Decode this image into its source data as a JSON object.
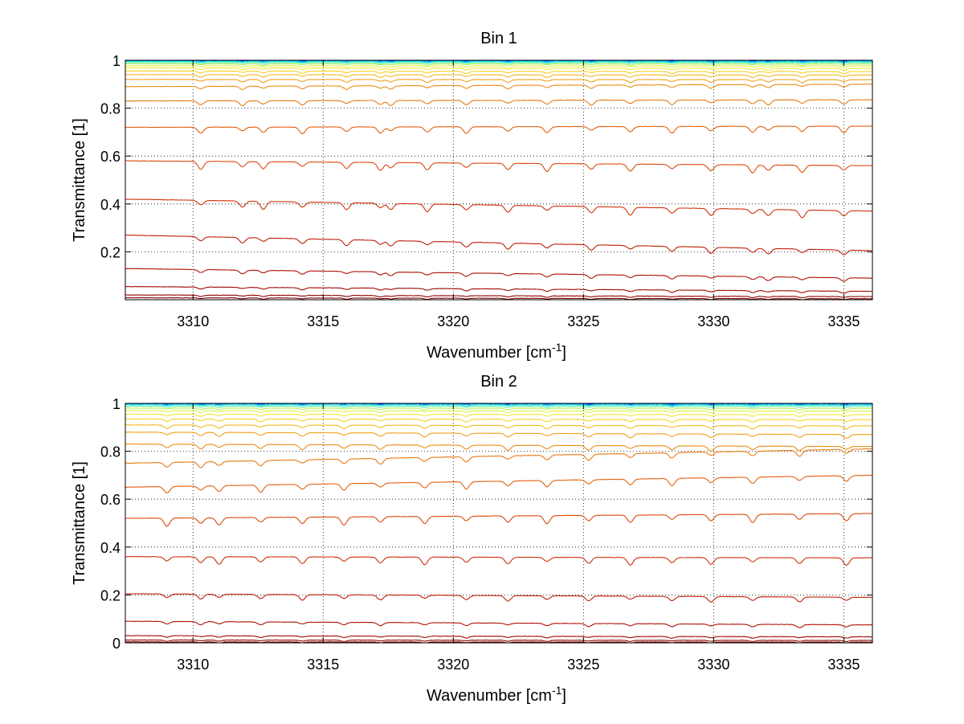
{
  "chart_data": [
    {
      "type": "line",
      "title": "Bin 1",
      "xlabel": "Wavenumber [cm",
      "xlabel_sup": "-1",
      "xlabel_suffix": "]",
      "ylabel": "Transmittance [1]",
      "xlim": [
        3307.4,
        3336.1
      ],
      "ylim": [
        0,
        1
      ],
      "xticks": [
        3310,
        3315,
        3320,
        3325,
        3330,
        3335
      ],
      "xtick_labels": [
        "3310",
        "3315",
        "3320",
        "3325",
        "3330",
        "3335"
      ],
      "yticks": [
        0.2,
        0.4,
        0.6,
        0.8,
        1
      ],
      "ytick_labels": [
        "0.2",
        "0.4",
        "0.6",
        "0.8",
        "1"
      ],
      "grid": "dotted",
      "absorption_lines_cm-1": [
        3310.3,
        3311.9,
        3312.7,
        3314.2,
        3315.9,
        3317.2,
        3317.6,
        3319.0,
        3320.5,
        3322.1,
        3323.6,
        3325.3,
        3326.8,
        3328.4,
        3329.9,
        3331.5,
        3332.1,
        3333.4,
        3335.0
      ],
      "series": [
        {
          "name": "trace-1",
          "color": "#0000c8",
          "start": 1.0,
          "end": 1.0
        },
        {
          "name": "trace-2",
          "color": "#0050ff",
          "start": 1.0,
          "end": 0.999
        },
        {
          "name": "trace-3",
          "color": "#00a0ff",
          "start": 0.998,
          "end": 0.997
        },
        {
          "name": "trace-4",
          "color": "#10dfe0",
          "start": 0.995,
          "end": 0.994
        },
        {
          "name": "trace-5",
          "color": "#60f0a0",
          "start": 0.99,
          "end": 0.99
        },
        {
          "name": "trace-6",
          "color": "#b0f060",
          "start": 0.985,
          "end": 0.984
        },
        {
          "name": "trace-7",
          "color": "#e0f040",
          "start": 0.977,
          "end": 0.976
        },
        {
          "name": "trace-8",
          "color": "#f5e830",
          "start": 0.968,
          "end": 0.966
        },
        {
          "name": "trace-9",
          "color": "#f8d020",
          "start": 0.955,
          "end": 0.953
        },
        {
          "name": "trace-10",
          "color": "#f5b820",
          "start": 0.94,
          "end": 0.938
        },
        {
          "name": "trace-11",
          "color": "#f0a018",
          "start": 0.92,
          "end": 0.919
        },
        {
          "name": "trace-12",
          "color": "#ec8c14",
          "start": 0.89,
          "end": 0.9
        },
        {
          "name": "trace-13",
          "color": "#e87810",
          "start": 0.83,
          "end": 0.835
        },
        {
          "name": "trace-14",
          "color": "#e4600e",
          "start": 0.72,
          "end": 0.725
        },
        {
          "name": "trace-15",
          "color": "#dc480c",
          "start": 0.58,
          "end": 0.56
        },
        {
          "name": "trace-16",
          "color": "#d0300a",
          "start": 0.42,
          "end": 0.37
        },
        {
          "name": "trace-17",
          "color": "#c01e08",
          "start": 0.27,
          "end": 0.205
        },
        {
          "name": "trace-18",
          "color": "#b01006",
          "start": 0.13,
          "end": 0.09
        },
        {
          "name": "trace-19",
          "color": "#a00804",
          "start": 0.055,
          "end": 0.035
        },
        {
          "name": "trace-20",
          "color": "#900404",
          "start": 0.02,
          "end": 0.013
        },
        {
          "name": "trace-21",
          "color": "#800000",
          "start": 0.008,
          "end": 0.004
        }
      ]
    },
    {
      "type": "line",
      "title": "Bin 2",
      "xlabel": "Wavenumber [cm",
      "xlabel_sup": "-1",
      "xlabel_suffix": "]",
      "ylabel": "Transmittance [1]",
      "xlim": [
        3307.4,
        3336.1
      ],
      "ylim": [
        0,
        1
      ],
      "xticks": [
        3310,
        3315,
        3320,
        3325,
        3330,
        3335
      ],
      "xtick_labels": [
        "3310",
        "3315",
        "3320",
        "3325",
        "3330",
        "3335"
      ],
      "yticks": [
        0,
        0.2,
        0.4,
        0.6,
        0.8,
        1
      ],
      "ytick_labels": [
        "0",
        "0.2",
        "0.4",
        "0.6",
        "0.8",
        "1"
      ],
      "grid": "dotted",
      "absorption_lines_cm-1": [
        3309.0,
        3310.3,
        3311.0,
        3312.6,
        3314.2,
        3315.8,
        3317.2,
        3318.9,
        3320.5,
        3322.1,
        3323.6,
        3325.2,
        3326.8,
        3328.4,
        3329.9,
        3331.5,
        3333.3,
        3335.1
      ],
      "series": [
        {
          "name": "trace-1",
          "color": "#0000c8",
          "start": 1.0,
          "end": 1.0
        },
        {
          "name": "trace-2",
          "color": "#0050ff",
          "start": 1.0,
          "end": 0.999
        },
        {
          "name": "trace-3",
          "color": "#00a0ff",
          "start": 0.998,
          "end": 0.997
        },
        {
          "name": "trace-4",
          "color": "#10dfe0",
          "start": 0.994,
          "end": 0.993
        },
        {
          "name": "trace-5",
          "color": "#60f0a0",
          "start": 0.988,
          "end": 0.987
        },
        {
          "name": "trace-6",
          "color": "#b0f060",
          "start": 0.98,
          "end": 0.979
        },
        {
          "name": "trace-7",
          "color": "#e0f040",
          "start": 0.97,
          "end": 0.968
        },
        {
          "name": "trace-8",
          "color": "#f5e830",
          "start": 0.955,
          "end": 0.953
        },
        {
          "name": "trace-9",
          "color": "#f8d020",
          "start": 0.935,
          "end": 0.932
        },
        {
          "name": "trace-10",
          "color": "#f5b820",
          "start": 0.91,
          "end": 0.906
        },
        {
          "name": "trace-11",
          "color": "#f0a018",
          "start": 0.88,
          "end": 0.87
        },
        {
          "name": "trace-12",
          "color": "#ec8c14",
          "start": 0.83,
          "end": 0.82
        },
        {
          "name": "trace-13",
          "color": "#e87810",
          "start": 0.75,
          "end": 0.81
        },
        {
          "name": "trace-14",
          "color": "#e4600e",
          "start": 0.65,
          "end": 0.7
        },
        {
          "name": "trace-15",
          "color": "#dc480c",
          "start": 0.52,
          "end": 0.54
        },
        {
          "name": "trace-16",
          "color": "#d0300a",
          "start": 0.36,
          "end": 0.355
        },
        {
          "name": "trace-17",
          "color": "#c01e08",
          "start": 0.205,
          "end": 0.19
        },
        {
          "name": "trace-18",
          "color": "#b01006",
          "start": 0.09,
          "end": 0.075
        },
        {
          "name": "trace-19",
          "color": "#a00804",
          "start": 0.03,
          "end": 0.025
        },
        {
          "name": "trace-20",
          "color": "#900404",
          "start": 0.012,
          "end": 0.01
        },
        {
          "name": "trace-21",
          "color": "#800000",
          "start": 0.004,
          "end": 0.003
        }
      ]
    }
  ]
}
